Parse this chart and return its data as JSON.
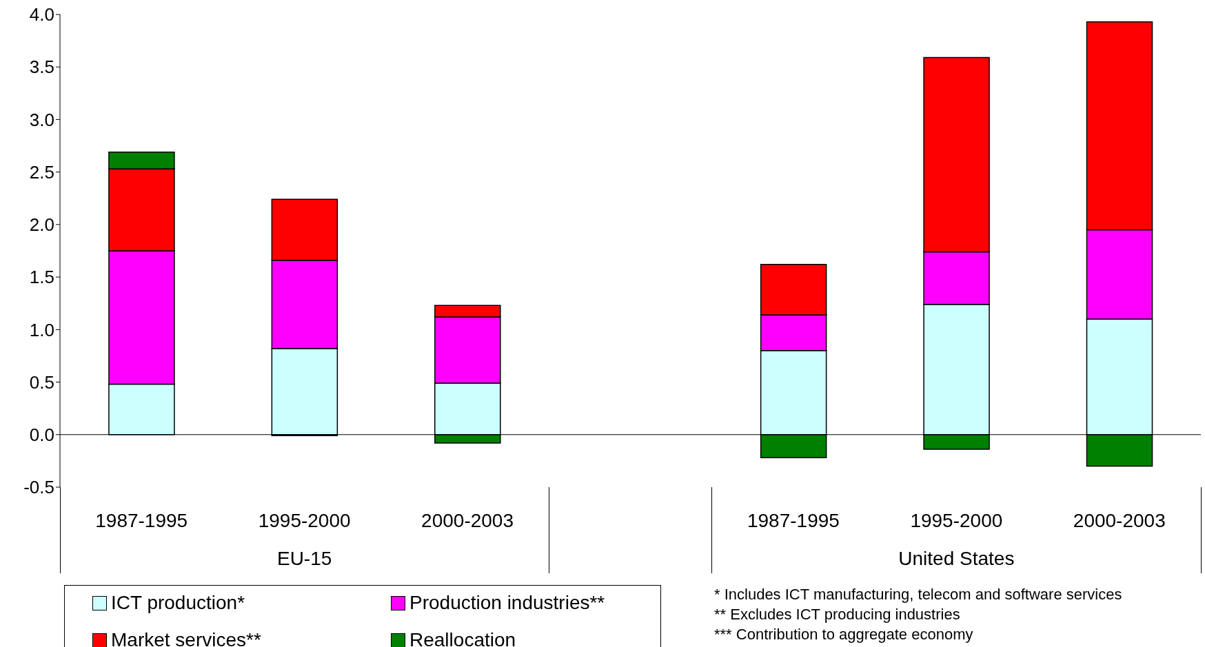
{
  "chart_data": {
    "type": "bar",
    "stacked": true,
    "categories": [
      "1987-1995",
      "1995-2000",
      "2000-2003",
      null,
      "1987-1995",
      "1995-2000",
      "2000-2003"
    ],
    "series": [
      {
        "name": "ICT production*",
        "color": "#ccffff",
        "values": [
          0.48,
          0.82,
          0.49,
          null,
          0.8,
          1.24,
          1.1
        ]
      },
      {
        "name": "Production industries**",
        "color": "#ff00ff",
        "values": [
          1.27,
          0.84,
          0.63,
          null,
          0.34,
          0.5,
          0.85
        ]
      },
      {
        "name": "Market services**",
        "color": "#ff0000",
        "values": [
          0.78,
          0.58,
          0.11,
          null,
          0.48,
          1.85,
          1.98
        ]
      },
      {
        "name": "Reallocation",
        "color": "#008000",
        "values": [
          0.16,
          -0.01,
          -0.08,
          null,
          -0.22,
          -0.14,
          -0.3
        ]
      }
    ],
    "ylim": [
      -0.5,
      4.0
    ],
    "yticks": [
      {
        "value": -0.5,
        "label": "-0.5"
      },
      {
        "value": 0,
        "label": "0.0"
      },
      {
        "value": 0.5,
        "label": "0.5"
      },
      {
        "value": 1,
        "label": "1.0"
      },
      {
        "value": 1.5,
        "label": "1.5"
      },
      {
        "value": 2,
        "label": "2.0"
      },
      {
        "value": 2.5,
        "label": "2.5"
      },
      {
        "value": 3,
        "label": "3.0"
      },
      {
        "value": 3.5,
        "label": "3.5"
      },
      {
        "value": 4,
        "label": "4.0"
      }
    ],
    "ref_lines": [
      {
        "axis": "y",
        "value": 0,
        "color": "#000000"
      }
    ],
    "grid": false,
    "legend": "bottom left",
    "annotations": [
      "EU-15",
      "United States",
      "* Includes ICT manufacturing, telecom and software services",
      "** Excludes ICT producing industries",
      "*** Contribution to aggregate economy"
    ]
  }
}
